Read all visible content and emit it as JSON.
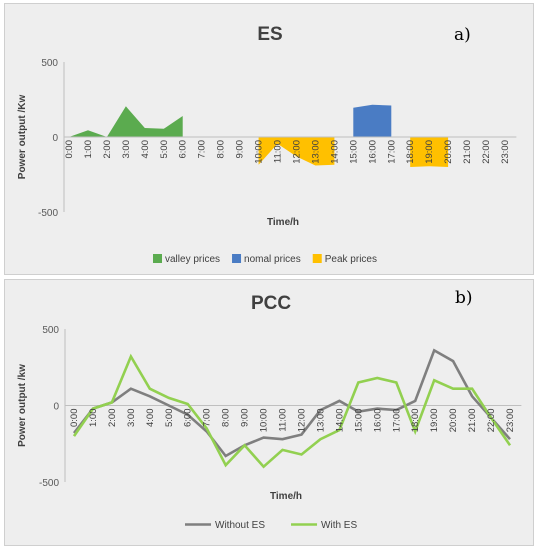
{
  "chart_data": [
    {
      "type": "area",
      "title": "ES",
      "panel_label": "a)",
      "xlabel": "Time/h",
      "ylabel": "Power output /Kw",
      "ylim": [
        -500,
        500
      ],
      "yticks": [
        500,
        0,
        -500
      ],
      "categories": [
        "0:00",
        "1:00",
        "2:00",
        "3:00",
        "4:00",
        "5:00",
        "6:00",
        "7:00",
        "8:00",
        "9:00",
        "10:00",
        "11:00",
        "12:00",
        "13:00",
        "14:00",
        "15:00",
        "16:00",
        "17:00",
        "18:00",
        "19:00",
        "20:00",
        "21:00",
        "22:00",
        "23:00"
      ],
      "legend_position": "bottom",
      "series": [
        {
          "name": "valley prices",
          "color": "#5bab4f",
          "values": [
            0,
            45,
            0,
            205,
            60,
            55,
            140,
            null,
            null,
            null,
            null,
            null,
            null,
            null,
            null,
            null,
            null,
            null,
            null,
            null,
            null,
            null,
            null,
            null
          ]
        },
        {
          "name": "nomal prices",
          "color": "#4a7cc4",
          "values": [
            null,
            null,
            null,
            null,
            null,
            null,
            null,
            null,
            null,
            null,
            null,
            null,
            null,
            null,
            null,
            195,
            215,
            210,
            null,
            null,
            null,
            null,
            null,
            null
          ]
        },
        {
          "name": "Peak prices",
          "color": "#ffc000",
          "values": [
            null,
            null,
            null,
            null,
            null,
            null,
            null,
            null,
            null,
            null,
            -185,
            -45,
            -130,
            -190,
            -185,
            null,
            null,
            null,
            -200,
            -195,
            -200,
            null,
            null,
            null
          ]
        }
      ]
    },
    {
      "type": "line",
      "title": "PCC",
      "panel_label": "b)",
      "xlabel": "Time/h",
      "ylabel": "Power output /kw",
      "ylim": [
        -500,
        500
      ],
      "yticks": [
        500,
        0,
        -500
      ],
      "categories": [
        "0:00",
        "1:00",
        "2:00",
        "3:00",
        "4:00",
        "5:00",
        "6:00",
        "7:00",
        "8:00",
        "9:00",
        "10:00",
        "11:00",
        "12:00",
        "13:00",
        "14:00",
        "15:00",
        "16:00",
        "17:00",
        "18:00",
        "19:00",
        "20:00",
        "21:00",
        "22:00",
        "23:00"
      ],
      "legend_position": "bottom",
      "series": [
        {
          "name": "Without ES",
          "color": "#7f7f7f",
          "values": [
            -180,
            -20,
            20,
            110,
            60,
            0,
            -60,
            -170,
            -330,
            -260,
            -210,
            -220,
            -190,
            -30,
            30,
            -40,
            -20,
            -30,
            30,
            360,
            290,
            60,
            -80,
            -220
          ]
        },
        {
          "name": "With ES",
          "color": "#92d050",
          "values": [
            -200,
            -20,
            20,
            320,
            110,
            50,
            10,
            -150,
            -390,
            -260,
            -400,
            -290,
            -320,
            -220,
            -160,
            150,
            180,
            150,
            -170,
            165,
            110,
            110,
            -80,
            -260
          ]
        }
      ]
    }
  ]
}
